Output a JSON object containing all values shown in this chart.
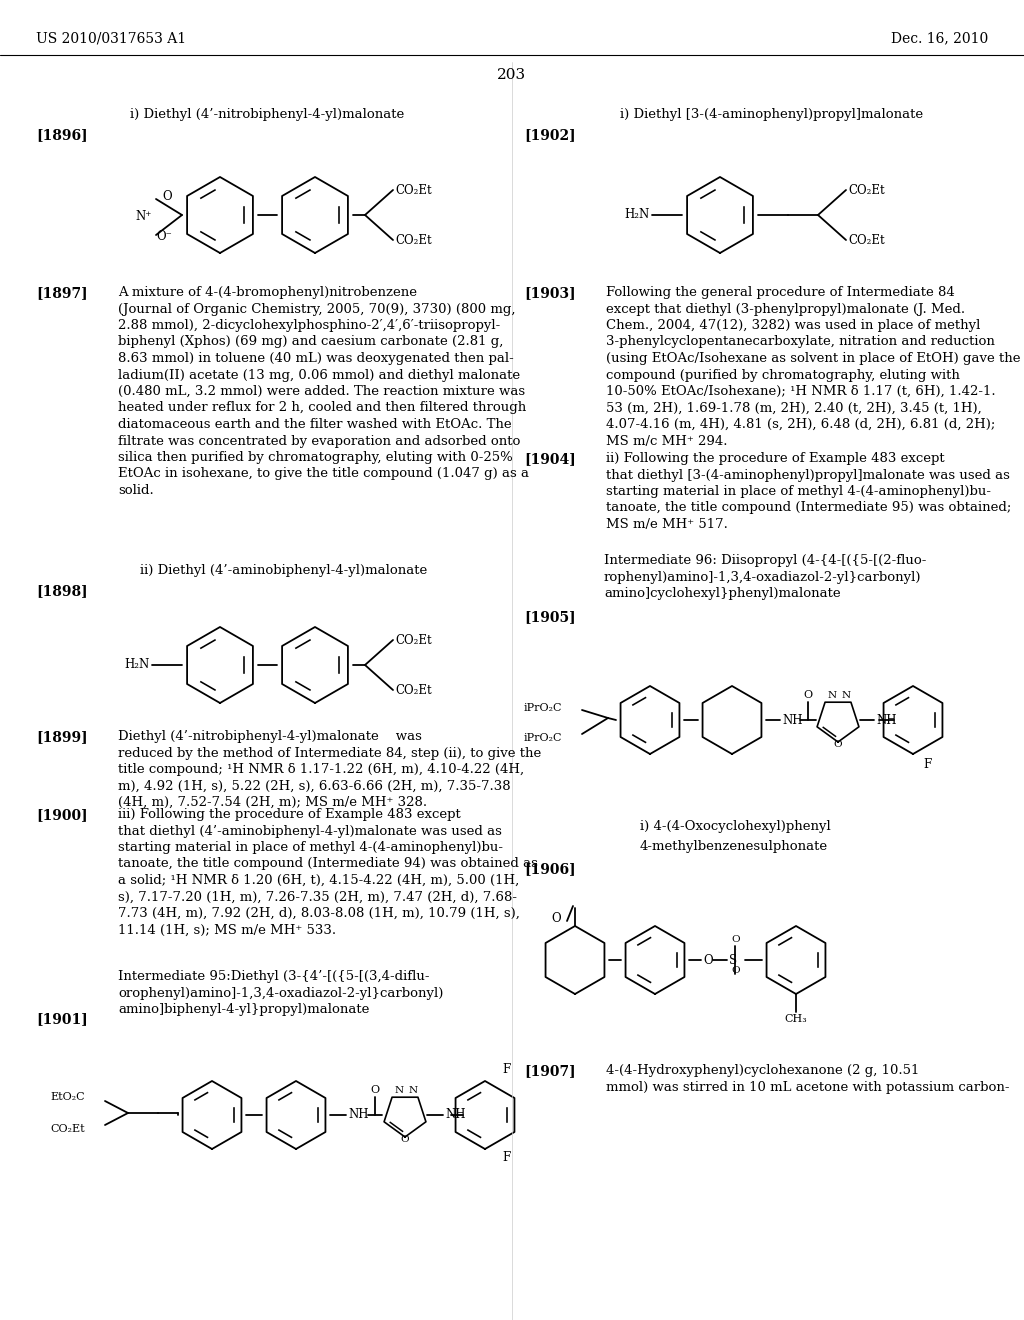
{
  "page_number": "203",
  "patent_number": "US 2010/0317653 A1",
  "patent_date": "Dec. 16, 2010",
  "background_color": "#ffffff",
  "figsize": [
    10.24,
    13.2
  ],
  "dpi": 100,
  "font_size_body": 9.5,
  "font_size_label": 9.5,
  "font_size_header": 10,
  "font_size_page": 11,
  "font_size_bracket": 10
}
